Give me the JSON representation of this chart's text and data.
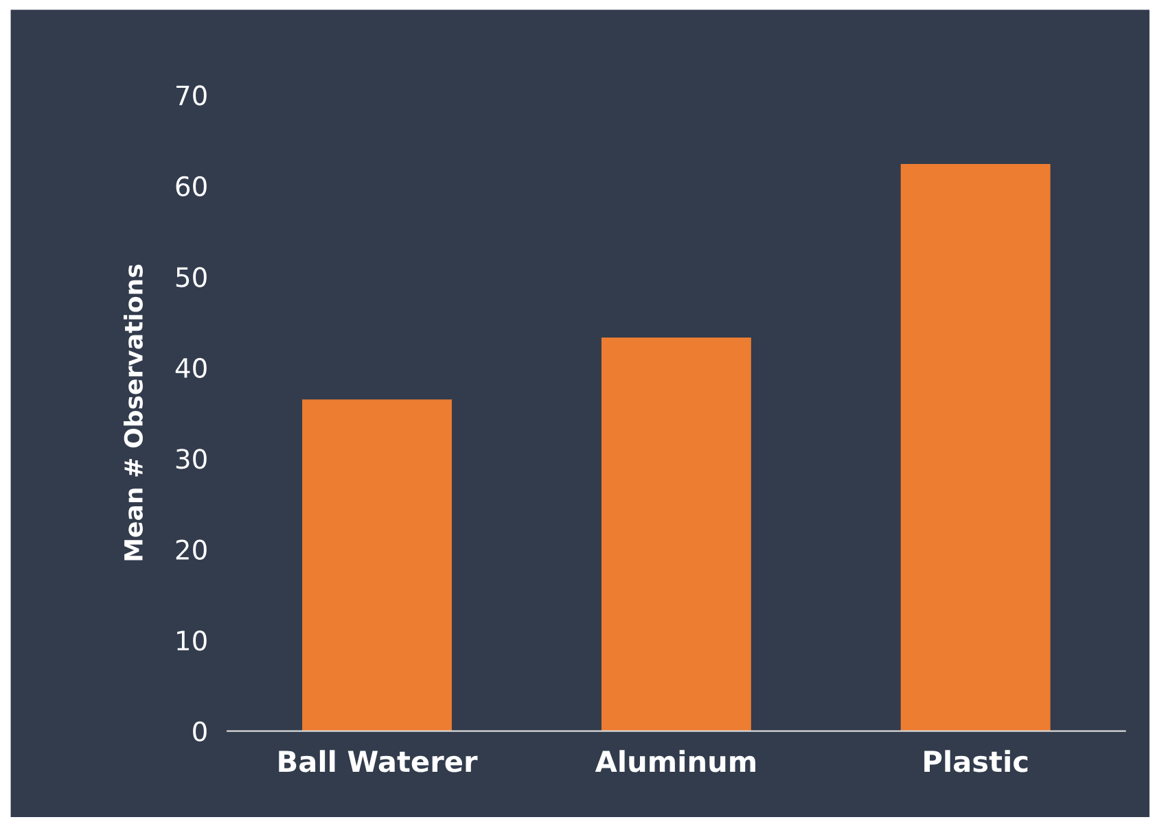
{
  "chart_data": {
    "type": "bar",
    "ylabel": "Mean # Observations",
    "categories": [
      "Ball Waterer",
      "Aluminum",
      "Plastic"
    ],
    "values": [
      36.5,
      43.3,
      62.4
    ],
    "color": "#ed7d31",
    "ylim": [
      0,
      70
    ],
    "yticks": [
      0,
      10,
      20,
      30,
      40,
      50,
      60,
      70
    ],
    "grid": false,
    "legend": false
  }
}
